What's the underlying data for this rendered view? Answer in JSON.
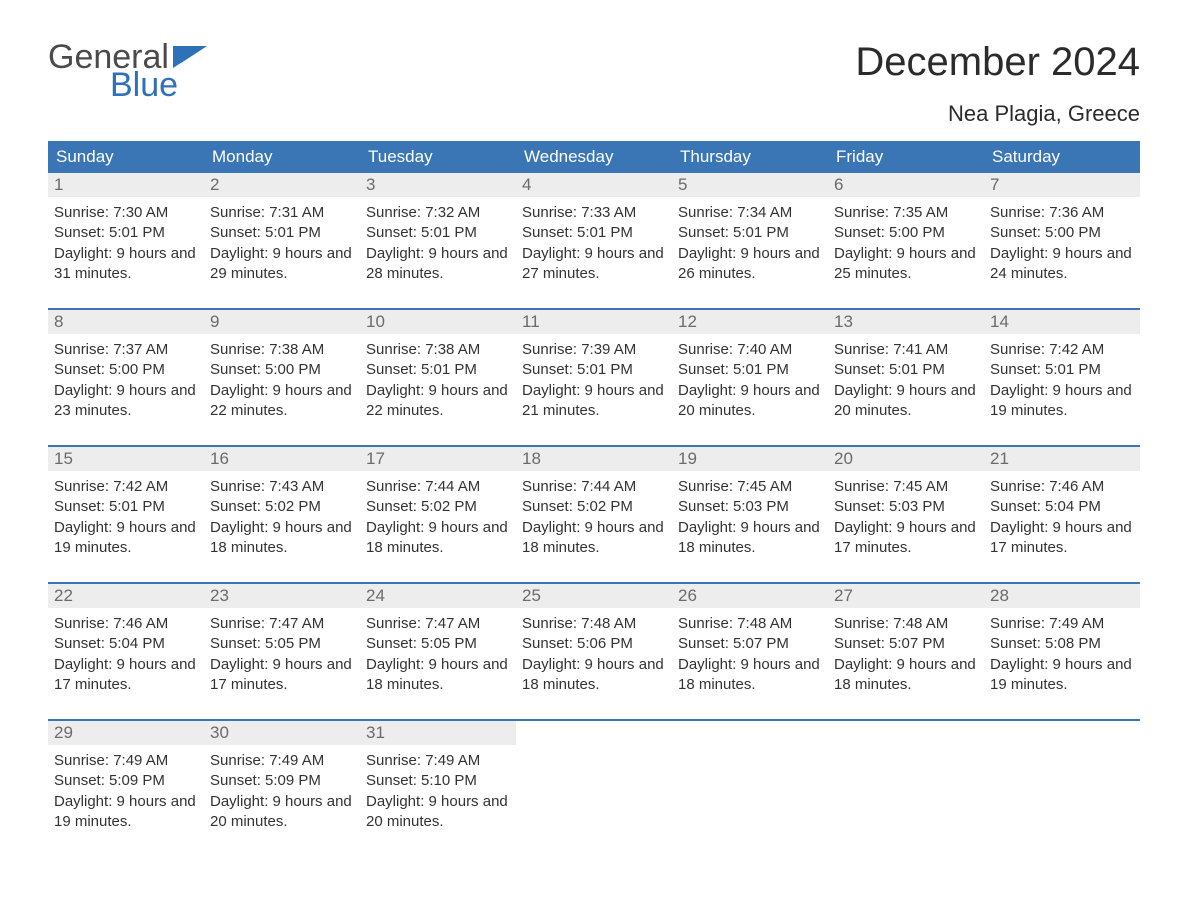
{
  "brand": {
    "word1": "General",
    "word2": "Blue"
  },
  "title": "December 2024",
  "location": "Nea Plagia, Greece",
  "colors": {
    "header_bg": "#3a76b6",
    "header_text": "#ffffff",
    "daynum_bg": "#ededed",
    "daynum_text": "#6b6b6b",
    "body_text": "#333333",
    "week_divider": "#3a76b6",
    "logo_gray": "#4a4a4a",
    "logo_blue": "#2f71b8",
    "page_bg": "#ffffff"
  },
  "day_headers": [
    "Sunday",
    "Monday",
    "Tuesday",
    "Wednesday",
    "Thursday",
    "Friday",
    "Saturday"
  ],
  "weeks": [
    [
      {
        "n": "1",
        "sr": "7:30 AM",
        "ss": "5:01 PM",
        "dl": "9 hours and 31 minutes."
      },
      {
        "n": "2",
        "sr": "7:31 AM",
        "ss": "5:01 PM",
        "dl": "9 hours and 29 minutes."
      },
      {
        "n": "3",
        "sr": "7:32 AM",
        "ss": "5:01 PM",
        "dl": "9 hours and 28 minutes."
      },
      {
        "n": "4",
        "sr": "7:33 AM",
        "ss": "5:01 PM",
        "dl": "9 hours and 27 minutes."
      },
      {
        "n": "5",
        "sr": "7:34 AM",
        "ss": "5:01 PM",
        "dl": "9 hours and 26 minutes."
      },
      {
        "n": "6",
        "sr": "7:35 AM",
        "ss": "5:00 PM",
        "dl": "9 hours and 25 minutes."
      },
      {
        "n": "7",
        "sr": "7:36 AM",
        "ss": "5:00 PM",
        "dl": "9 hours and 24 minutes."
      }
    ],
    [
      {
        "n": "8",
        "sr": "7:37 AM",
        "ss": "5:00 PM",
        "dl": "9 hours and 23 minutes."
      },
      {
        "n": "9",
        "sr": "7:38 AM",
        "ss": "5:00 PM",
        "dl": "9 hours and 22 minutes."
      },
      {
        "n": "10",
        "sr": "7:38 AM",
        "ss": "5:01 PM",
        "dl": "9 hours and 22 minutes."
      },
      {
        "n": "11",
        "sr": "7:39 AM",
        "ss": "5:01 PM",
        "dl": "9 hours and 21 minutes."
      },
      {
        "n": "12",
        "sr": "7:40 AM",
        "ss": "5:01 PM",
        "dl": "9 hours and 20 minutes."
      },
      {
        "n": "13",
        "sr": "7:41 AM",
        "ss": "5:01 PM",
        "dl": "9 hours and 20 minutes."
      },
      {
        "n": "14",
        "sr": "7:42 AM",
        "ss": "5:01 PM",
        "dl": "9 hours and 19 minutes."
      }
    ],
    [
      {
        "n": "15",
        "sr": "7:42 AM",
        "ss": "5:01 PM",
        "dl": "9 hours and 19 minutes."
      },
      {
        "n": "16",
        "sr": "7:43 AM",
        "ss": "5:02 PM",
        "dl": "9 hours and 18 minutes."
      },
      {
        "n": "17",
        "sr": "7:44 AM",
        "ss": "5:02 PM",
        "dl": "9 hours and 18 minutes."
      },
      {
        "n": "18",
        "sr": "7:44 AM",
        "ss": "5:02 PM",
        "dl": "9 hours and 18 minutes."
      },
      {
        "n": "19",
        "sr": "7:45 AM",
        "ss": "5:03 PM",
        "dl": "9 hours and 18 minutes."
      },
      {
        "n": "20",
        "sr": "7:45 AM",
        "ss": "5:03 PM",
        "dl": "9 hours and 17 minutes."
      },
      {
        "n": "21",
        "sr": "7:46 AM",
        "ss": "5:04 PM",
        "dl": "9 hours and 17 minutes."
      }
    ],
    [
      {
        "n": "22",
        "sr": "7:46 AM",
        "ss": "5:04 PM",
        "dl": "9 hours and 17 minutes."
      },
      {
        "n": "23",
        "sr": "7:47 AM",
        "ss": "5:05 PM",
        "dl": "9 hours and 17 minutes."
      },
      {
        "n": "24",
        "sr": "7:47 AM",
        "ss": "5:05 PM",
        "dl": "9 hours and 18 minutes."
      },
      {
        "n": "25",
        "sr": "7:48 AM",
        "ss": "5:06 PM",
        "dl": "9 hours and 18 minutes."
      },
      {
        "n": "26",
        "sr": "7:48 AM",
        "ss": "5:07 PM",
        "dl": "9 hours and 18 minutes."
      },
      {
        "n": "27",
        "sr": "7:48 AM",
        "ss": "5:07 PM",
        "dl": "9 hours and 18 minutes."
      },
      {
        "n": "28",
        "sr": "7:49 AM",
        "ss": "5:08 PM",
        "dl": "9 hours and 19 minutes."
      }
    ],
    [
      {
        "n": "29",
        "sr": "7:49 AM",
        "ss": "5:09 PM",
        "dl": "9 hours and 19 minutes."
      },
      {
        "n": "30",
        "sr": "7:49 AM",
        "ss": "5:09 PM",
        "dl": "9 hours and 20 minutes."
      },
      {
        "n": "31",
        "sr": "7:49 AM",
        "ss": "5:10 PM",
        "dl": "9 hours and 20 minutes."
      },
      null,
      null,
      null,
      null
    ]
  ],
  "labels": {
    "sunrise": "Sunrise: ",
    "sunset": "Sunset: ",
    "daylight": "Daylight: "
  }
}
